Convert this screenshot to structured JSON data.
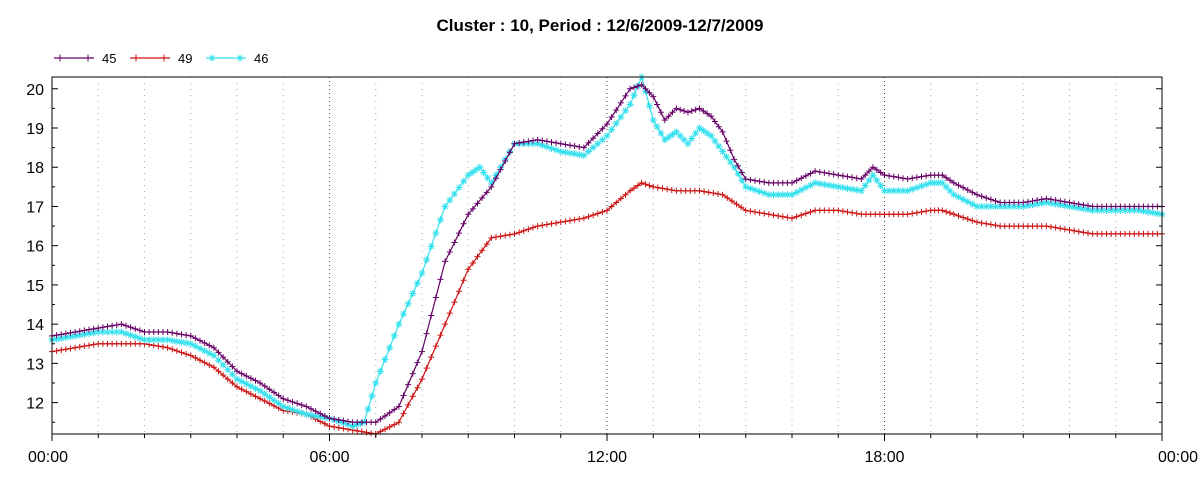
{
  "chart_data": {
    "type": "line",
    "title": "Cluster : 10, Period : 12/6/2009-12/7/2009",
    "xlabel": "",
    "ylabel": "",
    "x_unit": "hours",
    "xlim": [
      0,
      24
    ],
    "ylim": [
      11.2,
      20.3
    ],
    "x_ticks": [
      {
        "value": 0,
        "label": "00:00"
      },
      {
        "value": 6,
        "label": "06:00"
      },
      {
        "value": 12,
        "label": "12:00"
      },
      {
        "value": 18,
        "label": "18:00"
      },
      {
        "value": 24,
        "label": "00:00"
      }
    ],
    "y_ticks": [
      12,
      13,
      14,
      15,
      16,
      17,
      18,
      19,
      20
    ],
    "grid": {
      "x_major": "dotted",
      "x_minor": "dotted",
      "y": false
    },
    "legend_position": "top-left",
    "series": [
      {
        "name": "45",
        "color": "#660066",
        "marker": "plus",
        "x": [
          0,
          0.5,
          1,
          1.5,
          2,
          2.5,
          3,
          3.5,
          4,
          4.5,
          5,
          5.5,
          6,
          6.5,
          7,
          7.5,
          8,
          8.5,
          9,
          9.5,
          10,
          10.5,
          11,
          11.5,
          12,
          12.5,
          12.75,
          13,
          13.25,
          13.5,
          13.75,
          14,
          14.25,
          14.5,
          14.75,
          15,
          15.5,
          16,
          16.5,
          17,
          17.5,
          17.75,
          18,
          18.5,
          19,
          19.25,
          19.5,
          20,
          20.5,
          21,
          21.5,
          22,
          22.5,
          23,
          23.5,
          24
        ],
        "values": [
          13.7,
          13.8,
          13.9,
          14.0,
          13.8,
          13.8,
          13.7,
          13.4,
          12.8,
          12.5,
          12.1,
          11.9,
          11.6,
          11.5,
          11.5,
          11.9,
          13.3,
          15.6,
          16.8,
          17.5,
          18.6,
          18.7,
          18.6,
          18.5,
          19.1,
          20.0,
          20.1,
          19.8,
          19.2,
          19.5,
          19.4,
          19.5,
          19.3,
          18.9,
          18.2,
          17.7,
          17.6,
          17.6,
          17.9,
          17.8,
          17.7,
          18.0,
          17.8,
          17.7,
          17.8,
          17.8,
          17.6,
          17.3,
          17.1,
          17.1,
          17.2,
          17.1,
          17.0,
          17.0,
          17.0,
          17.0
        ]
      },
      {
        "name": "49",
        "color": "#cc1111",
        "marker": "plus",
        "x": [
          0,
          0.5,
          1,
          1.5,
          2,
          2.5,
          3,
          3.5,
          4,
          4.5,
          5,
          5.5,
          6,
          6.5,
          7,
          7.5,
          8,
          8.5,
          9,
          9.5,
          10,
          10.5,
          11,
          11.5,
          12,
          12.5,
          12.75,
          13,
          13.5,
          14,
          14.5,
          15,
          15.5,
          16,
          16.5,
          17,
          17.5,
          18,
          18.5,
          19,
          19.25,
          19.5,
          20,
          20.5,
          21,
          21.5,
          22,
          22.5,
          23,
          23.5,
          24
        ],
        "values": [
          13.3,
          13.4,
          13.5,
          13.5,
          13.5,
          13.4,
          13.2,
          12.9,
          12.4,
          12.1,
          11.8,
          11.7,
          11.4,
          11.3,
          11.2,
          11.5,
          12.6,
          14.0,
          15.4,
          16.2,
          16.3,
          16.5,
          16.6,
          16.7,
          16.9,
          17.4,
          17.6,
          17.5,
          17.4,
          17.4,
          17.3,
          16.9,
          16.8,
          16.7,
          16.9,
          16.9,
          16.8,
          16.8,
          16.8,
          16.9,
          16.9,
          16.8,
          16.6,
          16.5,
          16.5,
          16.5,
          16.4,
          16.3,
          16.3,
          16.3,
          16.3
        ]
      },
      {
        "name": "46",
        "color": "#33e0ee",
        "marker": "asterisk",
        "x": [
          0,
          0.5,
          1,
          1.5,
          2,
          2.5,
          3,
          3.5,
          4,
          4.5,
          5,
          5.5,
          6,
          6.5,
          6.75,
          7,
          7.5,
          8,
          8.5,
          9,
          9.25,
          9.5,
          10,
          10.5,
          11,
          11.5,
          12,
          12.5,
          12.75,
          13,
          13.25,
          13.5,
          13.75,
          14,
          14.25,
          14.5,
          14.75,
          15,
          15.5,
          16,
          16.5,
          17,
          17.5,
          17.75,
          18,
          18.5,
          19,
          19.25,
          19.5,
          20,
          20.5,
          21,
          21.5,
          22,
          22.5,
          23,
          23.5,
          24
        ],
        "values": [
          13.6,
          13.7,
          13.8,
          13.8,
          13.6,
          13.6,
          13.5,
          13.2,
          12.6,
          12.3,
          11.9,
          11.7,
          11.6,
          11.4,
          11.5,
          12.5,
          14.0,
          15.3,
          17.0,
          17.8,
          18.0,
          17.6,
          18.6,
          18.6,
          18.4,
          18.3,
          18.8,
          19.6,
          20.3,
          19.2,
          18.7,
          18.9,
          18.6,
          19.0,
          18.8,
          18.4,
          18.0,
          17.5,
          17.3,
          17.3,
          17.6,
          17.5,
          17.4,
          17.8,
          17.4,
          17.4,
          17.6,
          17.6,
          17.3,
          17.0,
          17.0,
          17.0,
          17.1,
          17.0,
          16.9,
          16.9,
          16.9,
          16.8
        ]
      }
    ]
  }
}
